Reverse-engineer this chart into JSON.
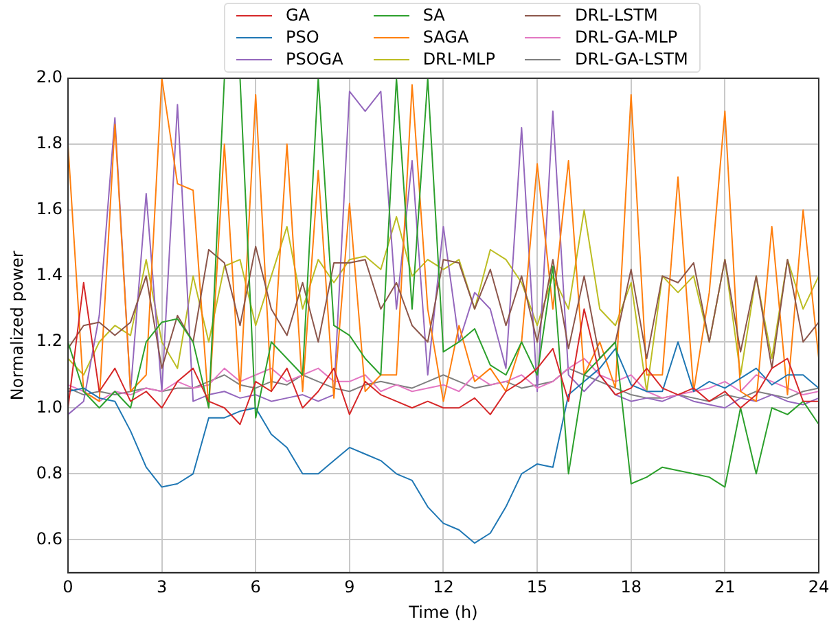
{
  "chart_data": {
    "type": "line",
    "xlabel": "Time (h)",
    "ylabel": "Normalized power",
    "x": [
      0,
      0.5,
      1,
      1.5,
      2,
      2.5,
      3,
      3.5,
      4,
      4.5,
      5,
      5.5,
      6,
      6.5,
      7,
      7.5,
      8,
      8.5,
      9,
      9.5,
      10,
      10.5,
      11,
      11.5,
      12,
      12.5,
      13,
      13.5,
      14,
      14.5,
      15,
      15.5,
      16,
      16.5,
      17,
      17.5,
      18,
      18.5,
      19,
      19.5,
      20,
      20.5,
      21,
      21.5,
      22,
      22.5,
      23,
      23.5,
      24
    ],
    "xlim": [
      0,
      24
    ],
    "xticks": [
      0,
      3,
      6,
      9,
      12,
      15,
      18,
      21,
      24
    ],
    "ylim": [
      0.5,
      2.0
    ],
    "yticks": [
      0.6,
      0.8,
      {
        "value": 1.0,
        "label": "1.0"
      },
      1.2,
      1.4,
      1.6,
      1.8,
      {
        "value": 2.0,
        "label": "2.0"
      }
    ],
    "grid": true,
    "legend": "top",
    "series": [
      {
        "name": "GA",
        "color": "#d62728",
        "values": [
          1.0,
          1.38,
          1.05,
          1.12,
          1.02,
          1.05,
          1.0,
          1.08,
          1.12,
          1.02,
          1.0,
          0.95,
          1.08,
          1.05,
          1.12,
          1.0,
          1.05,
          1.12,
          0.98,
          1.08,
          1.04,
          1.02,
          1.0,
          1.02,
          1.0,
          1.0,
          1.03,
          0.98,
          1.05,
          1.08,
          1.12,
          1.18,
          1.02,
          1.3,
          1.1,
          1.04,
          1.06,
          1.12,
          1.06,
          1.04,
          1.06,
          1.02,
          1.05,
          1.0,
          1.04,
          1.12,
          1.15,
          1.02,
          1.02
        ]
      },
      {
        "name": "SA",
        "color": "#2ca02c",
        "values": [
          1.2,
          1.05,
          1.0,
          1.05,
          1.0,
          1.2,
          1.26,
          1.27,
          1.2,
          1.0,
          2.0,
          2.0,
          0.97,
          1.2,
          1.15,
          1.1,
          2.0,
          1.25,
          1.22,
          1.15,
          1.1,
          2.0,
          1.3,
          2.0,
          1.17,
          1.2,
          1.24,
          1.13,
          1.1,
          1.2,
          1.1,
          1.43,
          0.8,
          1.1,
          1.15,
          1.2,
          0.77,
          0.79,
          0.82,
          0.81,
          0.8,
          0.79,
          0.76,
          1.0,
          0.8,
          1.0,
          0.98,
          1.02,
          0.95
        ]
      },
      {
        "name": "DRL-LSTM",
        "color": "#8c564b",
        "values": [
          1.18,
          1.25,
          1.26,
          1.22,
          1.26,
          1.4,
          1.12,
          1.28,
          1.2,
          1.48,
          1.44,
          1.25,
          1.49,
          1.3,
          1.22,
          1.38,
          1.2,
          1.44,
          1.44,
          1.45,
          1.3,
          1.38,
          1.25,
          1.2,
          1.45,
          1.44,
          1.3,
          1.42,
          1.25,
          1.4,
          1.2,
          1.45,
          1.18,
          1.4,
          1.15,
          1.2,
          1.42,
          1.15,
          1.4,
          1.38,
          1.44,
          1.2,
          1.45,
          1.17,
          1.4,
          1.12,
          1.45,
          1.2,
          1.26
        ]
      },
      {
        "name": "PSO",
        "color": "#1f77b4",
        "values": [
          1.05,
          1.06,
          1.03,
          1.02,
          0.93,
          0.82,
          0.76,
          0.77,
          0.8,
          0.97,
          0.97,
          0.99,
          1.0,
          0.92,
          0.88,
          0.8,
          0.8,
          0.84,
          0.88,
          0.86,
          0.84,
          0.8,
          0.78,
          0.7,
          0.65,
          0.63,
          0.59,
          0.62,
          0.7,
          0.8,
          0.83,
          0.82,
          1.04,
          1.08,
          1.12,
          1.18,
          1.07,
          1.05,
          1.05,
          1.2,
          1.05,
          1.08,
          1.06,
          1.09,
          1.12,
          1.07,
          1.1,
          1.1,
          1.06
        ]
      },
      {
        "name": "SAGA",
        "color": "#ff7f0e",
        "values": [
          1.8,
          1.05,
          1.02,
          1.86,
          1.05,
          1.1,
          2.0,
          1.68,
          1.66,
          1.0,
          1.8,
          1.05,
          1.95,
          1.05,
          1.8,
          1.05,
          1.72,
          1.03,
          1.62,
          1.05,
          1.1,
          1.1,
          1.98,
          1.3,
          1.02,
          1.25,
          1.08,
          1.12,
          1.05,
          1.2,
          1.74,
          1.3,
          1.75,
          1.1,
          1.2,
          1.06,
          1.95,
          1.1,
          1.1,
          1.7,
          1.05,
          1.35,
          1.9,
          1.05,
          1.02,
          1.55,
          1.04,
          1.6,
          1.15
        ]
      },
      {
        "name": "DRL-GA-MLP",
        "color": "#e377c2",
        "values": [
          1.07,
          1.05,
          1.02,
          1.05,
          1.04,
          1.06,
          1.05,
          1.08,
          1.06,
          1.07,
          1.12,
          1.08,
          1.1,
          1.12,
          1.08,
          1.1,
          1.12,
          1.08,
          1.08,
          1.1,
          1.05,
          1.07,
          1.05,
          1.06,
          1.07,
          1.05,
          1.1,
          1.07,
          1.08,
          1.1,
          1.06,
          1.08,
          1.12,
          1.15,
          1.1,
          1.08,
          1.1,
          1.05,
          1.03,
          1.04,
          1.05,
          1.06,
          1.08,
          1.05,
          1.1,
          1.08,
          1.06,
          1.04,
          1.05
        ]
      },
      {
        "name": "PSOGA",
        "color": "#9467bd",
        "values": [
          0.98,
          1.02,
          1.28,
          1.88,
          1.05,
          1.65,
          1.05,
          1.92,
          1.02,
          1.04,
          1.05,
          1.03,
          1.04,
          1.02,
          1.03,
          1.04,
          1.02,
          1.04,
          1.96,
          1.9,
          1.96,
          1.3,
          1.75,
          1.1,
          1.55,
          1.2,
          1.35,
          1.3,
          1.12,
          1.85,
          1.05,
          1.9,
          1.1,
          1.05,
          1.1,
          1.04,
          1.02,
          1.03,
          1.02,
          1.04,
          1.02,
          1.01,
          1.0,
          1.03,
          1.02,
          1.04,
          1.02,
          1.01,
          1.03
        ]
      },
      {
        "name": "DRL-MLP",
        "color": "#bcbd22",
        "values": [
          1.15,
          1.1,
          1.2,
          1.25,
          1.22,
          1.45,
          1.2,
          1.12,
          1.4,
          1.2,
          1.43,
          1.45,
          1.25,
          1.4,
          1.55,
          1.3,
          1.45,
          1.38,
          1.45,
          1.46,
          1.42,
          1.58,
          1.4,
          1.45,
          1.42,
          1.45,
          1.3,
          1.48,
          1.45,
          1.38,
          1.25,
          1.4,
          1.3,
          1.6,
          1.3,
          1.25,
          1.38,
          1.05,
          1.4,
          1.35,
          1.4,
          1.2,
          1.45,
          1.1,
          1.4,
          1.15,
          1.45,
          1.3,
          1.4
        ]
      },
      {
        "name": "DRL-GA-LSTM",
        "color": "#7f7f7f",
        "values": [
          1.06,
          1.04,
          1.05,
          1.04,
          1.05,
          1.06,
          1.05,
          1.06,
          1.06,
          1.08,
          1.1,
          1.07,
          1.06,
          1.08,
          1.07,
          1.1,
          1.08,
          1.06,
          1.05,
          1.07,
          1.08,
          1.07,
          1.06,
          1.08,
          1.1,
          1.08,
          1.06,
          1.07,
          1.08,
          1.06,
          1.07,
          1.08,
          1.12,
          1.1,
          1.08,
          1.06,
          1.04,
          1.03,
          1.03,
          1.04,
          1.03,
          1.02,
          1.04,
          1.03,
          1.05,
          1.04,
          1.03,
          1.05,
          1.06
        ]
      }
    ]
  }
}
